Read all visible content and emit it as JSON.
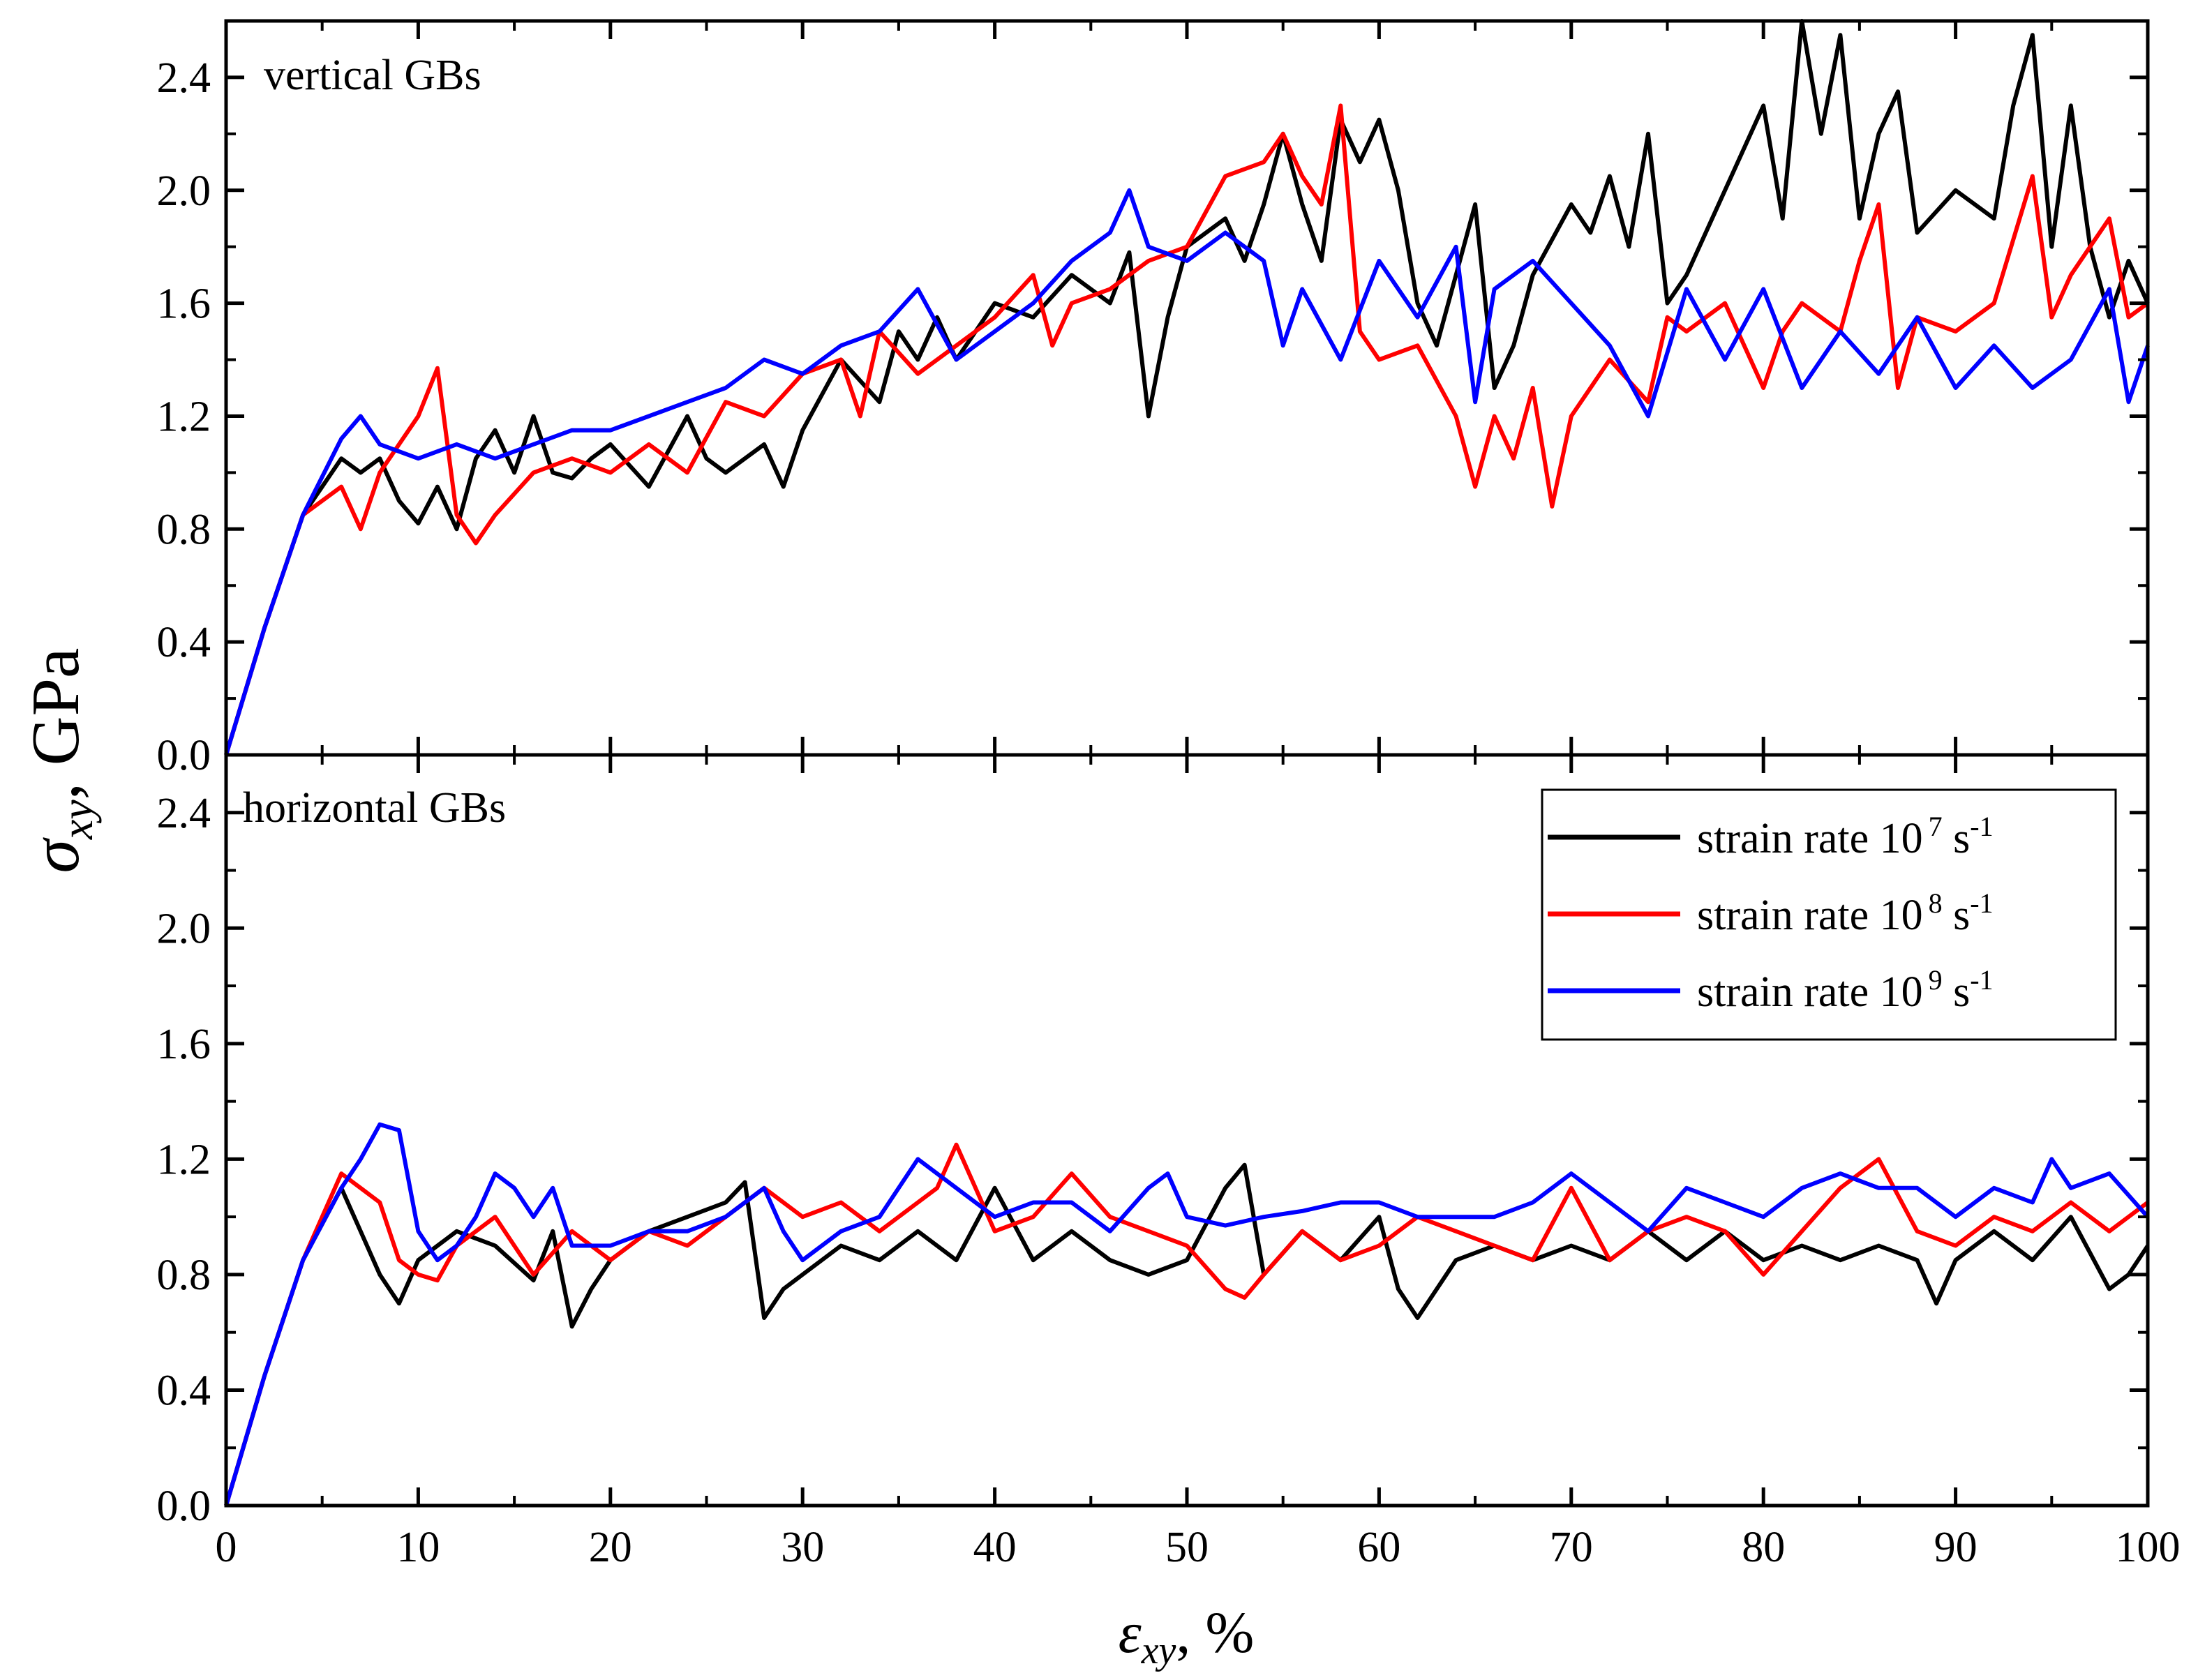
{
  "chart_data": [
    {
      "type": "line",
      "panel": "top",
      "label": "vertical GBs",
      "xlim": [
        0,
        100
      ],
      "ylim": [
        0,
        2.6
      ],
      "xticks": [
        0,
        10,
        20,
        30,
        40,
        50,
        60,
        70,
        80,
        90,
        100
      ],
      "xtick_labels": [
        "0",
        "10",
        "20",
        "30",
        "40",
        "50",
        "60",
        "70",
        "80",
        "90",
        "100"
      ],
      "yticks": [
        0.0,
        0.4,
        0.8,
        1.2,
        1.6,
        2.0,
        2.4
      ],
      "ytick_labels": [
        "0.0",
        "0.4",
        "0.8",
        "1.2",
        "1.6",
        "2.0",
        "2.4"
      ],
      "series": [
        {
          "name": "strain rate 10^7 s^-1",
          "color": "#000000",
          "x": [
            0,
            2,
            4,
            6,
            7,
            8,
            9,
            10,
            11,
            12,
            13,
            14,
            15,
            16,
            17,
            18,
            19,
            20,
            22,
            24,
            25,
            26,
            28,
            29,
            30,
            32,
            34,
            35,
            36,
            37,
            38,
            39,
            40,
            42,
            44,
            46,
            47,
            48,
            49,
            50,
            52,
            53,
            54,
            55,
            56,
            57,
            58,
            59,
            60,
            61,
            62,
            63,
            64,
            65,
            66,
            67,
            68,
            70,
            71,
            72,
            73,
            74,
            75,
            76,
            78,
            80,
            81,
            82,
            83,
            84,
            85,
            86,
            87,
            88,
            90,
            92,
            93,
            94,
            95,
            96,
            97,
            98,
            99,
            100
          ],
          "y": [
            0.0,
            0.45,
            0.85,
            1.05,
            1.0,
            1.05,
            0.9,
            0.82,
            0.95,
            0.8,
            1.05,
            1.15,
            1.0,
            1.2,
            1.0,
            0.98,
            1.05,
            1.1,
            0.95,
            1.2,
            1.05,
            1.0,
            1.1,
            0.95,
            1.15,
            1.4,
            1.25,
            1.5,
            1.4,
            1.55,
            1.4,
            1.5,
            1.6,
            1.55,
            1.7,
            1.6,
            1.78,
            1.2,
            1.55,
            1.8,
            1.9,
            1.75,
            1.95,
            2.2,
            1.95,
            1.75,
            2.25,
            2.1,
            2.25,
            2.0,
            1.6,
            1.45,
            1.7,
            1.95,
            1.3,
            1.45,
            1.7,
            1.95,
            1.85,
            2.05,
            1.8,
            2.2,
            1.6,
            1.7,
            2.0,
            2.3,
            1.9,
            2.6,
            2.2,
            2.55,
            1.9,
            2.2,
            2.35,
            1.85,
            2.0,
            1.9,
            2.3,
            2.55,
            1.8,
            2.3,
            1.8,
            1.55,
            1.75,
            1.6
          ]
        },
        {
          "name": "strain rate 10^8 s^-1",
          "color": "#ff0000",
          "x": [
            0,
            2,
            4,
            5,
            6,
            7,
            8,
            10,
            11,
            12,
            13,
            14,
            16,
            18,
            20,
            22,
            24,
            26,
            28,
            30,
            32,
            33,
            34,
            36,
            38,
            40,
            42,
            43,
            44,
            46,
            48,
            50,
            52,
            54,
            55,
            56,
            57,
            58,
            59,
            60,
            62,
            64,
            65,
            66,
            67,
            68,
            69,
            70,
            72,
            74,
            75,
            76,
            78,
            80,
            81,
            82,
            84,
            85,
            86,
            87,
            88,
            90,
            92,
            94,
            95,
            96,
            98,
            99,
            100
          ],
          "y": [
            0.0,
            0.45,
            0.85,
            0.9,
            0.95,
            0.8,
            1.0,
            1.2,
            1.37,
            0.85,
            0.75,
            0.85,
            1.0,
            1.05,
            1.0,
            1.1,
            1.0,
            1.25,
            1.2,
            1.35,
            1.4,
            1.2,
            1.5,
            1.35,
            1.45,
            1.55,
            1.7,
            1.45,
            1.6,
            1.65,
            1.75,
            1.8,
            2.05,
            2.1,
            2.2,
            2.05,
            1.95,
            2.3,
            1.5,
            1.4,
            1.45,
            1.2,
            0.95,
            1.2,
            1.05,
            1.3,
            0.88,
            1.2,
            1.4,
            1.25,
            1.55,
            1.5,
            1.6,
            1.3,
            1.5,
            1.6,
            1.5,
            1.75,
            1.95,
            1.3,
            1.55,
            1.5,
            1.6,
            2.05,
            1.55,
            1.7,
            1.9,
            1.55,
            1.6
          ]
        },
        {
          "name": "strain rate 10^9 s^-1",
          "color": "#0000ff",
          "x": [
            0,
            2,
            4,
            6,
            7,
            8,
            10,
            12,
            14,
            16,
            18,
            20,
            22,
            24,
            26,
            28,
            30,
            32,
            34,
            36,
            38,
            40,
            42,
            44,
            46,
            47,
            48,
            50,
            52,
            54,
            55,
            56,
            58,
            60,
            62,
            64,
            65,
            66,
            68,
            70,
            72,
            74,
            76,
            78,
            80,
            82,
            84,
            86,
            88,
            90,
            92,
            94,
            96,
            98,
            99,
            100
          ],
          "y": [
            0.0,
            0.45,
            0.85,
            1.12,
            1.2,
            1.1,
            1.05,
            1.1,
            1.05,
            1.1,
            1.15,
            1.15,
            1.2,
            1.25,
            1.3,
            1.4,
            1.35,
            1.45,
            1.5,
            1.65,
            1.4,
            1.5,
            1.6,
            1.75,
            1.85,
            2.0,
            1.8,
            1.75,
            1.85,
            1.75,
            1.45,
            1.65,
            1.4,
            1.75,
            1.55,
            1.8,
            1.25,
            1.65,
            1.75,
            1.6,
            1.45,
            1.2,
            1.65,
            1.4,
            1.65,
            1.3,
            1.5,
            1.35,
            1.55,
            1.3,
            1.45,
            1.3,
            1.4,
            1.65,
            1.25,
            1.45
          ]
        }
      ]
    },
    {
      "type": "line",
      "panel": "bottom",
      "label": "horizontal GBs",
      "xlim": [
        0,
        100
      ],
      "ylim": [
        0,
        2.6
      ],
      "xticks": [
        0,
        10,
        20,
        30,
        40,
        50,
        60,
        70,
        80,
        90,
        100
      ],
      "xtick_labels": [
        "0",
        "10",
        "20",
        "30",
        "40",
        "50",
        "60",
        "70",
        "80",
        "90",
        "100"
      ],
      "yticks": [
        0.0,
        0.4,
        0.8,
        1.2,
        1.6,
        2.0,
        2.4
      ],
      "ytick_labels": [
        "0.0",
        "0.4",
        "0.8",
        "1.2",
        "1.6",
        "2.0",
        "2.4"
      ],
      "series": [
        {
          "name": "strain rate 10^7 s^-1",
          "color": "#000000",
          "x": [
            0,
            2,
            4,
            6,
            7,
            8,
            9,
            10,
            12,
            14,
            16,
            17,
            18,
            19,
            20,
            22,
            24,
            26,
            27,
            28,
            29,
            30,
            32,
            34,
            36,
            38,
            40,
            42,
            44,
            46,
            48,
            50,
            52,
            53,
            54,
            56,
            58,
            60,
            61,
            62,
            64,
            66,
            68,
            70,
            72,
            74,
            76,
            78,
            80,
            82,
            84,
            86,
            88,
            89,
            90,
            92,
            94,
            96,
            98,
            99,
            100
          ],
          "y": [
            0.0,
            0.45,
            0.85,
            1.1,
            0.95,
            0.8,
            0.7,
            0.85,
            0.95,
            0.9,
            0.78,
            0.95,
            0.62,
            0.75,
            0.85,
            0.95,
            1.0,
            1.05,
            1.12,
            0.65,
            0.75,
            0.8,
            0.9,
            0.85,
            0.95,
            0.85,
            1.1,
            0.85,
            0.95,
            0.85,
            0.8,
            0.85,
            1.1,
            1.18,
            0.8,
            0.95,
            0.85,
            1.0,
            0.75,
            0.65,
            0.85,
            0.9,
            0.85,
            0.9,
            0.85,
            0.95,
            0.85,
            0.95,
            0.85,
            0.9,
            0.85,
            0.9,
            0.85,
            0.7,
            0.85,
            0.95,
            0.85,
            1.0,
            0.75,
            0.8,
            0.9
          ]
        },
        {
          "name": "strain rate 10^8 s^-1",
          "color": "#ff0000",
          "x": [
            0,
            2,
            4,
            6,
            7,
            8,
            9,
            10,
            11,
            12,
            14,
            16,
            18,
            20,
            22,
            24,
            26,
            28,
            30,
            32,
            34,
            36,
            37,
            38,
            40,
            42,
            44,
            46,
            48,
            50,
            52,
            53,
            54,
            56,
            58,
            60,
            62,
            64,
            66,
            68,
            70,
            72,
            74,
            76,
            78,
            80,
            82,
            84,
            86,
            88,
            90,
            92,
            94,
            96,
            98,
            100
          ],
          "y": [
            0.0,
            0.45,
            0.85,
            1.15,
            1.1,
            1.05,
            0.85,
            0.8,
            0.78,
            0.9,
            1.0,
            0.8,
            0.95,
            0.85,
            0.95,
            0.9,
            1.0,
            1.1,
            1.0,
            1.05,
            0.95,
            1.05,
            1.1,
            1.25,
            0.95,
            1.0,
            1.15,
            1.0,
            0.95,
            0.9,
            0.75,
            0.72,
            0.8,
            0.95,
            0.85,
            0.9,
            1.0,
            0.95,
            0.9,
            0.85,
            1.1,
            0.85,
            0.95,
            1.0,
            0.95,
            0.8,
            0.95,
            1.1,
            1.2,
            0.95,
            0.9,
            1.0,
            0.95,
            1.05,
            0.95,
            1.05
          ]
        },
        {
          "name": "strain rate 10^9 s^-1",
          "color": "#0000ff",
          "x": [
            0,
            2,
            4,
            6,
            7,
            8,
            9,
            10,
            11,
            12,
            13,
            14,
            15,
            16,
            17,
            18,
            20,
            22,
            24,
            26,
            28,
            29,
            30,
            32,
            34,
            36,
            38,
            40,
            42,
            44,
            46,
            48,
            49,
            50,
            52,
            54,
            56,
            58,
            60,
            62,
            64,
            66,
            68,
            70,
            72,
            74,
            76,
            78,
            80,
            82,
            84,
            86,
            88,
            90,
            92,
            94,
            95,
            96,
            98,
            100
          ],
          "y": [
            0.0,
            0.45,
            0.85,
            1.1,
            1.2,
            1.32,
            1.3,
            0.95,
            0.85,
            0.9,
            1.0,
            1.15,
            1.1,
            1.0,
            1.1,
            0.9,
            0.9,
            0.95,
            0.95,
            1.0,
            1.1,
            0.95,
            0.85,
            0.95,
            1.0,
            1.2,
            1.1,
            1.0,
            1.05,
            1.05,
            0.95,
            1.1,
            1.15,
            1.0,
            0.97,
            1.0,
            1.02,
            1.05,
            1.05,
            1.0,
            1.0,
            1.0,
            1.05,
            1.15,
            1.05,
            0.95,
            1.1,
            1.05,
            1.0,
            1.1,
            1.15,
            1.1,
            1.1,
            1.0,
            1.1,
            1.05,
            1.2,
            1.1,
            1.15,
            1.0
          ]
        }
      ]
    }
  ],
  "legend": {
    "entries": [
      {
        "text": "strain rate 10",
        "exp": "7",
        "unit": " s",
        "unit_exp": "-1",
        "color": "#000000"
      },
      {
        "text": "strain rate 10",
        "exp": "8",
        "unit": " s",
        "unit_exp": "-1",
        "color": "#ff0000"
      },
      {
        "text": "strain rate 10",
        "exp": "9",
        "unit": " s",
        "unit_exp": "-1",
        "color": "#0000ff"
      }
    ]
  },
  "y_axis_title": {
    "symbol": "σ",
    "subscript": "xy",
    "unit": ", GPa"
  },
  "x_axis_title": {
    "symbol": "ε",
    "subscript": "xy",
    "unit": ", %"
  }
}
